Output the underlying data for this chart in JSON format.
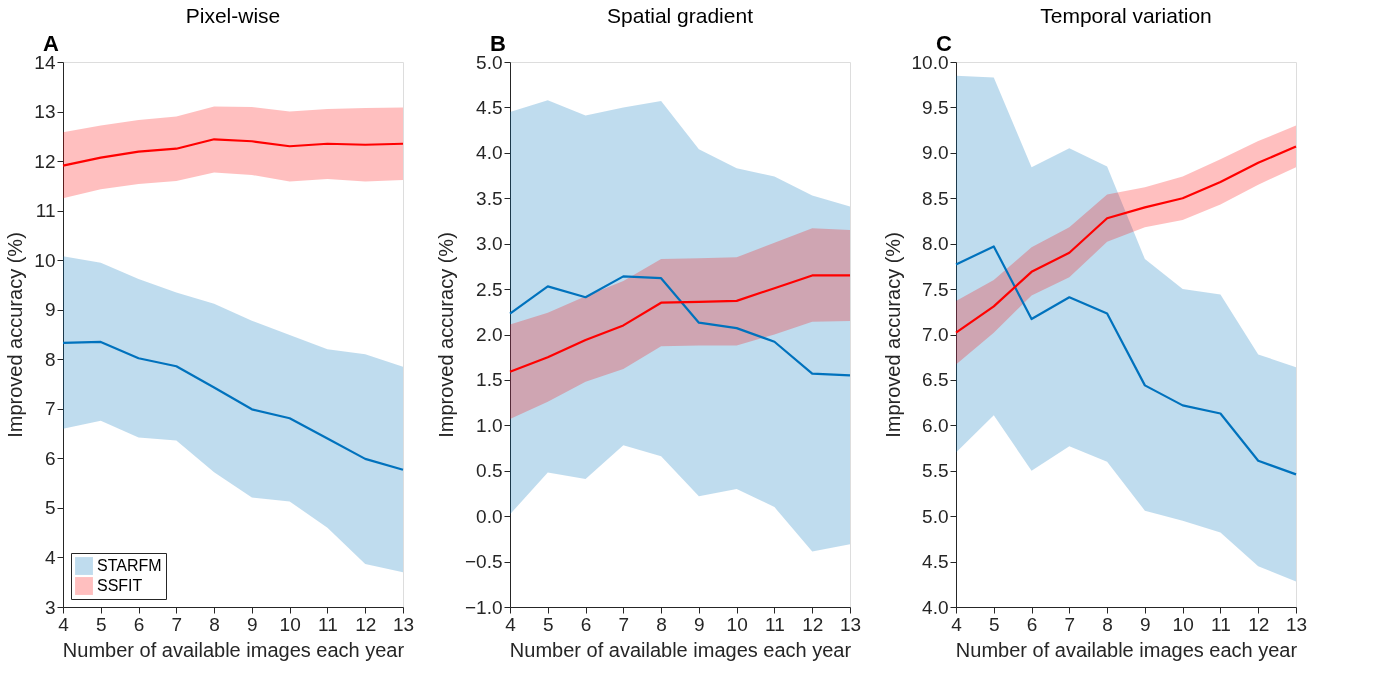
{
  "chart_data": [
    {
      "type": "line",
      "title": "Pixel-wise",
      "annotations": [
        "A"
      ],
      "xlabel": "Number of available images each year",
      "ylabel": "Improved accuracy (%)",
      "x": [
        4,
        5,
        6,
        7,
        8,
        9,
        10,
        11,
        12,
        13
      ],
      "xlim": [
        4,
        13
      ],
      "xticks": [
        4,
        5,
        6,
        7,
        8,
        9,
        10,
        11,
        12,
        13
      ],
      "ylim": [
        3,
        14
      ],
      "yticks": [
        3,
        4,
        5,
        6,
        7,
        8,
        9,
        10,
        11,
        12,
        13,
        14
      ],
      "legend": "bottom left",
      "grid": false,
      "series": [
        {
          "name": "STARFM",
          "color": "#0072bd",
          "values": [
            8.33,
            8.35,
            8.02,
            7.86,
            7.43,
            6.99,
            6.81,
            6.4,
            5.99,
            5.77
          ],
          "lower": [
            6.6,
            6.76,
            6.42,
            6.36,
            5.72,
            5.21,
            5.13,
            4.6,
            3.87,
            3.7
          ],
          "upper": [
            10.08,
            9.95,
            9.62,
            9.35,
            9.12,
            8.78,
            8.49,
            8.2,
            8.1,
            7.85
          ]
        },
        {
          "name": "SSFIT",
          "color": "#ff0000",
          "values": [
            11.91,
            12.07,
            12.19,
            12.25,
            12.44,
            12.4,
            12.3,
            12.35,
            12.33,
            12.35
          ],
          "lower": [
            11.25,
            11.43,
            11.54,
            11.6,
            11.77,
            11.72,
            11.59,
            11.64,
            11.59,
            11.62
          ],
          "upper": [
            12.58,
            12.72,
            12.83,
            12.9,
            13.1,
            13.09,
            13.0,
            13.05,
            13.07,
            13.08
          ]
        }
      ]
    },
    {
      "type": "line",
      "title": "Spatial gradient",
      "annotations": [
        "B"
      ],
      "xlabel": "Number of available images each year",
      "ylabel": "Improved accuracy (%)",
      "x": [
        4,
        5,
        6,
        7,
        8,
        9,
        10,
        11,
        12,
        13
      ],
      "xlim": [
        4,
        13
      ],
      "xticks": [
        4,
        5,
        6,
        7,
        8,
        9,
        10,
        11,
        12,
        13
      ],
      "ylim": [
        -1,
        5
      ],
      "yticks": [
        {
          "value": -1,
          "label": "−1.0"
        },
        {
          "value": -0.5,
          "label": "−0.5"
        },
        {
          "value": 0,
          "label": "0.0"
        },
        0.5,
        {
          "value": 1,
          "label": "1.0"
        },
        1.5,
        {
          "value": 2,
          "label": "2.0"
        },
        2.5,
        {
          "value": 3,
          "label": "3.0"
        },
        3.5,
        {
          "value": 4,
          "label": "4.0"
        },
        4.5,
        {
          "value": 5,
          "label": "5.0"
        }
      ],
      "legend": "bottom left",
      "grid": false,
      "series": [
        {
          "name": "STARFM",
          "color": "#0072bd",
          "values": [
            2.23,
            2.53,
            2.41,
            2.64,
            2.62,
            2.13,
            2.07,
            1.92,
            1.57,
            1.55
          ],
          "lower": [
            0.02,
            0.48,
            0.41,
            0.78,
            0.66,
            0.22,
            0.3,
            0.1,
            -0.39,
            -0.31
          ],
          "upper": [
            4.45,
            4.58,
            4.41,
            4.5,
            4.57,
            4.04,
            3.83,
            3.74,
            3.53,
            3.41
          ]
        },
        {
          "name": "SSFIT",
          "color": "#ff0000",
          "values": [
            1.59,
            1.75,
            1.94,
            2.1,
            2.35,
            2.36,
            2.37,
            2.51,
            2.65,
            2.65
          ],
          "lower": [
            1.07,
            1.26,
            1.48,
            1.62,
            1.87,
            1.88,
            1.88,
            2.0,
            2.14,
            2.15
          ],
          "upper": [
            2.11,
            2.24,
            2.42,
            2.59,
            2.83,
            2.84,
            2.85,
            3.01,
            3.17,
            3.15
          ]
        }
      ]
    },
    {
      "type": "line",
      "title": "Temporal variation",
      "annotations": [
        "C"
      ],
      "xlabel": "Number of available images each year",
      "ylabel": "Improved accuracy (%)",
      "x": [
        4,
        5,
        6,
        7,
        8,
        9,
        10,
        11,
        12,
        13
      ],
      "xlim": [
        4,
        13
      ],
      "xticks": [
        4,
        5,
        6,
        7,
        8,
        9,
        10,
        11,
        12,
        13
      ],
      "ylim": [
        4,
        10
      ],
      "yticks": [
        {
          "value": 4,
          "label": "4.0"
        },
        4.5,
        {
          "value": 5,
          "label": "5.0"
        },
        5.5,
        {
          "value": 6,
          "label": "6.0"
        },
        6.5,
        {
          "value": 7,
          "label": "7.0"
        },
        7.5,
        {
          "value": 8,
          "label": "8.0"
        },
        8.5,
        {
          "value": 9,
          "label": "9.0"
        },
        9.5,
        {
          "value": 10,
          "label": "10.0"
        }
      ],
      "legend": "bottom left",
      "grid": false,
      "series": [
        {
          "name": "STARFM",
          "color": "#0072bd",
          "values": [
            7.77,
            7.97,
            7.17,
            7.41,
            7.23,
            6.44,
            6.22,
            6.13,
            5.61,
            5.46
          ],
          "lower": [
            5.7,
            6.11,
            5.5,
            5.77,
            5.6,
            5.06,
            4.95,
            4.82,
            4.45,
            4.28
          ],
          "upper": [
            9.85,
            9.83,
            8.84,
            9.05,
            8.85,
            7.83,
            7.5,
            7.44,
            6.78,
            6.64
          ]
        },
        {
          "name": "SSFIT",
          "color": "#ff0000",
          "values": [
            7.02,
            7.31,
            7.69,
            7.9,
            8.28,
            8.4,
            8.5,
            8.68,
            8.89,
            9.07
          ],
          "lower": [
            6.67,
            7.02,
            7.43,
            7.63,
            8.02,
            8.18,
            8.26,
            8.43,
            8.65,
            8.84
          ],
          "upper": [
            7.37,
            7.6,
            7.96,
            8.18,
            8.54,
            8.62,
            8.74,
            8.93,
            9.13,
            9.3
          ]
        }
      ]
    }
  ]
}
